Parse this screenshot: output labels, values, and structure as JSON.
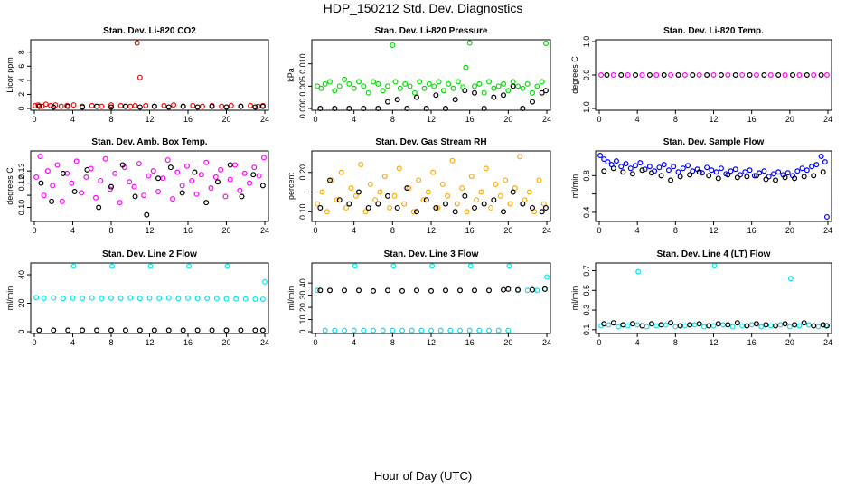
{
  "figure_title": "HDP_150212  Std. Dev. Diagnostics",
  "x_axis_label": "Hour of Day (UTC)",
  "chart_data": [
    {
      "type": "scatter",
      "title": "Stan. Dev. Li-820 CO2",
      "ylabel": "Licor ppm",
      "color": "#ff0000",
      "xlim": [
        0,
        24
      ],
      "ylim": [
        0,
        9.5
      ],
      "yticks": [
        0,
        2,
        4,
        6,
        8
      ],
      "ytick_labels": [
        "0",
        "2",
        "4",
        "6",
        "8"
      ],
      "xticks": [
        0,
        4,
        8,
        12,
        16,
        20,
        24
      ],
      "x": [
        0.1,
        0.4,
        0.8,
        1.2,
        1.7,
        2.2,
        2.8,
        3.4,
        4.1,
        5.0,
        6.0,
        7.0,
        8.0,
        9.0,
        10.0,
        10.5,
        10.7,
        11.0,
        11.6,
        12.5,
        13.5,
        14.5,
        15.5,
        16.5,
        17.5,
        18.5,
        19.5,
        20.5,
        21.5,
        22.5,
        23.3,
        23.8
      ],
      "y": [
        0.4,
        0.5,
        0.3,
        0.6,
        0.4,
        0.5,
        0.3,
        0.4,
        0.5,
        0.3,
        0.4,
        0.3,
        0.5,
        0.4,
        0.3,
        0.4,
        9.3,
        4.4,
        0.4,
        0.3,
        0.4,
        0.5,
        0.3,
        0.4,
        0.3,
        0.4,
        0.3,
        0.4,
        0.3,
        0.4,
        0.3,
        0.4
      ],
      "black_x": [
        0.5,
        2,
        3.5,
        5,
        6.5,
        8,
        9.5,
        11,
        12.5,
        14,
        15.5,
        17,
        18.5,
        20,
        21.5,
        23,
        23.8
      ],
      "black_y": [
        0.3,
        0.2,
        0.3,
        0.2,
        0.3,
        0.2,
        0.3,
        0.2,
        0.3,
        0.2,
        0.3,
        0.2,
        0.3,
        0.2,
        0.3,
        0.2,
        0.3
      ]
    },
    {
      "type": "scatter",
      "title": "Stan. Dev. Li-820 Pressure",
      "ylabel": "kPa",
      "color": "#00dd00",
      "xlim": [
        0,
        24
      ],
      "ylim": [
        0,
        0.015
      ],
      "yticks": [
        0,
        0.005,
        0.01
      ],
      "ytick_labels": [
        "0.000",
        "0.005",
        "0.010"
      ],
      "xticks": [
        0,
        4,
        8,
        12,
        16,
        20,
        24
      ],
      "x": [
        0.2,
        0.6,
        1.0,
        1.5,
        2.0,
        2.5,
        3.0,
        3.5,
        4.0,
        4.5,
        5.0,
        5.5,
        6.0,
        6.5,
        7.0,
        7.5,
        8.0,
        8.3,
        8.8,
        9.3,
        9.8,
        10.3,
        10.8,
        11.3,
        11.8,
        12.3,
        12.8,
        13.3,
        13.8,
        14.3,
        14.8,
        15.3,
        15.6,
        16.0,
        16.5,
        17.0,
        17.5,
        18.0,
        18.5,
        19.0,
        19.5,
        20.0,
        20.5,
        21.0,
        21.5,
        22.0,
        22.5,
        23.0,
        23.5,
        23.9
      ],
      "y": [
        0.005,
        0.0045,
        0.0055,
        0.006,
        0.004,
        0.005,
        0.0065,
        0.0055,
        0.0045,
        0.006,
        0.005,
        0.0035,
        0.006,
        0.0055,
        0.004,
        0.005,
        0.0142,
        0.006,
        0.0045,
        0.0055,
        0.005,
        0.0035,
        0.006,
        0.0045,
        0.0055,
        0.005,
        0.006,
        0.004,
        0.0055,
        0.0045,
        0.006,
        0.0048,
        0.0092,
        0.0147,
        0.005,
        0.0055,
        0.0035,
        0.006,
        0.0045,
        0.005,
        0.0055,
        0.004,
        0.006,
        0.005,
        0.0045,
        0.0055,
        0.0035,
        0.005,
        0.006,
        0.0146
      ],
      "black_x": [
        0.5,
        2,
        3.5,
        5,
        6.5,
        7.5,
        8.5,
        9.5,
        10.5,
        11.5,
        12.5,
        13.5,
        14.5,
        15.5,
        16.5,
        17.5,
        18.5,
        19.5,
        20.5,
        21.5,
        22.5,
        23.5,
        23.9
      ],
      "black_y": [
        0,
        0,
        0,
        0,
        0,
        0.0015,
        0.002,
        0,
        0.0025,
        0,
        0.003,
        0,
        0.002,
        0.004,
        0.0035,
        0,
        0.0025,
        0.003,
        0.005,
        0,
        0.0015,
        0.0035,
        0.004
      ]
    },
    {
      "type": "scatter",
      "title": "Stan. Dev. Li-820 Temp.",
      "ylabel": "degrees C",
      "color": "#ff00ff",
      "xlim": [
        0,
        24
      ],
      "ylim": [
        -1,
        1
      ],
      "yticks": [
        -1,
        0,
        1
      ],
      "ytick_labels": [
        "-1.0",
        "0.0",
        "1.0"
      ],
      "xticks": [
        0,
        4,
        8,
        12,
        16,
        20,
        24
      ],
      "x": [
        0.2,
        1.5,
        3,
        4.5,
        6,
        7.5,
        9,
        10.5,
        12,
        13.5,
        15,
        16.5,
        18,
        19.5,
        21,
        22.5,
        23.9
      ],
      "y": [
        0,
        0,
        0,
        0,
        0,
        0,
        0,
        0,
        0,
        0,
        0,
        0,
        0,
        0,
        0,
        0,
        0
      ],
      "black_x": [
        0.8,
        2.3,
        3.8,
        5.3,
        6.8,
        8.3,
        9.8,
        11.3,
        12.8,
        14.3,
        15.8,
        17.3,
        18.8,
        20.3,
        21.8,
        23.3
      ],
      "black_y": [
        0,
        0,
        0,
        0,
        0,
        0,
        0,
        0,
        0,
        0,
        0,
        0,
        0,
        0,
        0,
        0
      ]
    },
    {
      "type": "scatter",
      "title": "Stan. Dev. Amb. Box Temp.",
      "ylabel": "degrees C",
      "color": "#ff00ff",
      "xlim": [
        0,
        24
      ],
      "ylim": [
        0.09,
        0.145
      ],
      "yticks": [
        0.1,
        0.11,
        0.12,
        0.13
      ],
      "ytick_labels": [
        "0.10",
        "",
        "0.12",
        "0.13"
      ],
      "xticks": [
        0,
        4,
        8,
        12,
        16,
        20,
        24
      ],
      "x": [
        0.2,
        0.6,
        1.0,
        1.4,
        1.9,
        2.4,
        2.9,
        3.4,
        3.9,
        4.4,
        4.9,
        5.4,
        5.9,
        6.4,
        6.9,
        7.4,
        7.9,
        8.4,
        8.9,
        9.4,
        9.9,
        10.4,
        10.9,
        11.4,
        11.9,
        12.4,
        12.9,
        13.4,
        13.9,
        14.4,
        14.9,
        15.4,
        15.9,
        16.4,
        16.9,
        17.4,
        17.9,
        18.4,
        18.9,
        19.4,
        19.9,
        20.4,
        20.9,
        21.4,
        21.9,
        22.4,
        22.9,
        23.4,
        23.9
      ],
      "y": [
        0.125,
        0.142,
        0.11,
        0.13,
        0.118,
        0.135,
        0.105,
        0.128,
        0.12,
        0.138,
        0.112,
        0.125,
        0.132,
        0.108,
        0.122,
        0.14,
        0.115,
        0.128,
        0.104,
        0.133,
        0.121,
        0.117,
        0.136,
        0.11,
        0.126,
        0.13,
        0.113,
        0.124,
        0.139,
        0.107,
        0.129,
        0.118,
        0.134,
        0.122,
        0.111,
        0.127,
        0.137,
        0.116,
        0.125,
        0.131,
        0.109,
        0.123,
        0.135,
        0.114,
        0.128,
        0.12,
        0.133,
        0.126,
        0.141
      ],
      "black_x": [
        0.7,
        1.8,
        3.0,
        4.2,
        5.5,
        6.7,
        8.0,
        9.2,
        10.5,
        11.7,
        12.9,
        14.2,
        15.4,
        16.7,
        17.9,
        19.1,
        20.4,
        21.6,
        22.8,
        23.8
      ],
      "black_y": [
        0.12,
        0.105,
        0.128,
        0.113,
        0.131,
        0.1,
        0.117,
        0.135,
        0.109,
        0.094,
        0.124,
        0.133,
        0.112,
        0.129,
        0.104,
        0.121,
        0.135,
        0.109,
        0.127,
        0.118
      ]
    },
    {
      "type": "scatter",
      "title": "Stan. Dev. Gas Stream RH",
      "ylabel": "percent",
      "color": "#ffaa00",
      "xlim": [
        0,
        24
      ],
      "ylim": [
        0.08,
        0.25
      ],
      "yticks": [
        0.1,
        0.15,
        0.2
      ],
      "ytick_labels": [
        "0.10",
        "",
        "0.20"
      ],
      "xticks": [
        0,
        4,
        8,
        12,
        16,
        20,
        24
      ],
      "x": [
        0.2,
        0.7,
        1.2,
        1.7,
        2.2,
        2.7,
        3.2,
        3.7,
        4.2,
        4.7,
        5.2,
        5.7,
        6.2,
        6.7,
        7.2,
        7.7,
        8.2,
        8.7,
        9.2,
        9.7,
        10.2,
        10.7,
        11.2,
        11.7,
        12.2,
        12.7,
        13.2,
        13.7,
        14.2,
        14.7,
        15.2,
        15.7,
        16.2,
        16.7,
        17.2,
        17.7,
        18.2,
        18.7,
        19.2,
        19.7,
        20.2,
        20.7,
        21.2,
        21.7,
        22.2,
        22.7,
        23.2,
        23.7
      ],
      "y": [
        0.12,
        0.15,
        0.1,
        0.18,
        0.13,
        0.2,
        0.11,
        0.16,
        0.14,
        0.22,
        0.1,
        0.17,
        0.13,
        0.15,
        0.19,
        0.11,
        0.14,
        0.21,
        0.12,
        0.16,
        0.1,
        0.18,
        0.13,
        0.15,
        0.2,
        0.11,
        0.17,
        0.14,
        0.23,
        0.12,
        0.16,
        0.1,
        0.19,
        0.13,
        0.15,
        0.21,
        0.11,
        0.17,
        0.14,
        0.18,
        0.12,
        0.16,
        0.24,
        0.13,
        0.15,
        0.1,
        0.18,
        0.12
      ],
      "black_x": [
        0.5,
        1.5,
        2.5,
        3.5,
        4.5,
        5.5,
        6.5,
        7.5,
        8.5,
        9.5,
        10.5,
        11.5,
        12.5,
        13.5,
        14.5,
        15.5,
        16.5,
        17.5,
        18.5,
        19.5,
        20.5,
        21.5,
        22.5,
        23.5,
        23.9
      ],
      "black_y": [
        0.11,
        0.18,
        0.13,
        0.12,
        0.15,
        0.11,
        0.12,
        0.14,
        0.11,
        0.16,
        0.1,
        0.13,
        0.11,
        0.12,
        0.1,
        0.14,
        0.11,
        0.12,
        0.13,
        0.1,
        0.15,
        0.12,
        0.11,
        0.1,
        0.11
      ]
    },
    {
      "type": "scatter",
      "title": "Stan. Dev. Sample Flow",
      "ylabel": "ml/min",
      "color": "#0000ff",
      "xlim": [
        0,
        24
      ],
      "ylim": [
        0.32,
        1.05
      ],
      "yticks": [
        0.4,
        0.6,
        0.8
      ],
      "ytick_labels": [
        "0.4",
        "",
        "0.8"
      ],
      "xticks": [
        0,
        4,
        8,
        12,
        16,
        20,
        24
      ],
      "x": [
        0.1,
        0.5,
        0.9,
        1.3,
        1.8,
        2.3,
        2.8,
        3.3,
        3.8,
        4.3,
        4.8,
        5.3,
        5.8,
        6.3,
        6.8,
        7.3,
        7.8,
        8.3,
        8.8,
        9.3,
        9.8,
        10.3,
        10.8,
        11.3,
        11.8,
        12.3,
        12.8,
        13.3,
        13.8,
        14.3,
        14.8,
        15.3,
        15.8,
        16.3,
        16.8,
        17.3,
        17.8,
        18.3,
        18.8,
        19.3,
        19.8,
        20.3,
        20.8,
        21.3,
        21.8,
        22.3,
        22.8,
        23.3,
        23.7,
        23.9
      ],
      "y": [
        1.02,
        0.98,
        0.95,
        0.92,
        0.96,
        0.9,
        0.93,
        0.88,
        0.91,
        0.94,
        0.87,
        0.9,
        0.85,
        0.89,
        0.92,
        0.86,
        0.9,
        0.84,
        0.88,
        0.91,
        0.85,
        0.87,
        0.83,
        0.89,
        0.86,
        0.84,
        0.88,
        0.82,
        0.85,
        0.87,
        0.81,
        0.84,
        0.86,
        0.8,
        0.83,
        0.85,
        0.79,
        0.82,
        0.84,
        0.81,
        0.83,
        0.8,
        0.85,
        0.88,
        0.86,
        0.9,
        0.92,
        1.01,
        0.95,
        0.35
      ],
      "black_x": [
        0.5,
        1.5,
        2.5,
        3.5,
        4.5,
        5.5,
        6.5,
        7.5,
        8.5,
        9.5,
        10.5,
        11.5,
        12.5,
        13.5,
        14.5,
        15.5,
        16.5,
        17.5,
        18.5,
        19.5,
        20.5,
        21.5,
        22.5,
        23.5
      ],
      "black_y": [
        0.85,
        0.88,
        0.84,
        0.82,
        0.86,
        0.83,
        0.8,
        0.75,
        0.79,
        0.81,
        0.84,
        0.8,
        0.77,
        0.81,
        0.78,
        0.79,
        0.8,
        0.76,
        0.75,
        0.78,
        0.77,
        0.79,
        0.8,
        0.84
      ]
    },
    {
      "type": "scatter",
      "title": "Stan. Dev. Line 2 Flow",
      "ylabel": "ml/min",
      "color": "#00e5ee",
      "xlim": [
        0,
        24
      ],
      "ylim": [
        0,
        47
      ],
      "yticks": [
        0,
        20,
        40
      ],
      "ytick_labels": [
        "0",
        "20",
        "40"
      ],
      "xticks": [
        0,
        4,
        8,
        12,
        16,
        20,
        24
      ],
      "x": [
        0.2,
        1,
        2,
        3,
        4,
        4.1,
        5,
        6,
        7,
        8,
        8.1,
        9,
        10,
        11,
        12,
        12.1,
        13,
        14,
        15,
        16,
        16.1,
        17,
        18,
        19,
        20,
        20.1,
        21,
        22,
        23,
        23.8,
        24
      ],
      "y": [
        24,
        23.5,
        23.7,
        23.4,
        23.6,
        46,
        23.5,
        23.7,
        23.4,
        23.6,
        46,
        23.5,
        23.7,
        23.4,
        23.6,
        46,
        23.5,
        23.7,
        23.3,
        23.6,
        46,
        23.4,
        23.5,
        23.3,
        23.2,
        46,
        23.1,
        23,
        22.9,
        22.8,
        35
      ],
      "black_x": [
        0.5,
        2,
        3.5,
        5,
        6.5,
        8,
        9.5,
        11,
        12.5,
        14,
        15.5,
        17,
        18.5,
        20,
        21.5,
        23,
        23.8
      ],
      "black_y": [
        1,
        1,
        1,
        1,
        1,
        1,
        1,
        1,
        1,
        1,
        1,
        1,
        1,
        1,
        1,
        1,
        1
      ]
    },
    {
      "type": "scatter",
      "title": "Stan. Dev. Line 3 Flow",
      "ylabel": "ml/min",
      "color": "#00e5ee",
      "xlim": [
        0,
        24
      ],
      "ylim": [
        0,
        55
      ],
      "yticks": [
        0,
        10,
        20,
        30,
        40
      ],
      "ytick_labels": [
        "0",
        "10",
        "20",
        "30",
        "40"
      ],
      "xticks": [
        0,
        4,
        8,
        12,
        16,
        20,
        24
      ],
      "x": [
        0.2,
        1,
        2,
        3,
        4,
        4.1,
        5,
        6,
        7,
        8,
        8.1,
        9,
        10,
        11,
        12,
        12.1,
        13,
        14,
        15,
        16,
        16.1,
        17,
        18,
        19,
        20,
        20.1,
        21,
        22,
        23,
        23.8,
        24
      ],
      "y": [
        34,
        1,
        1,
        1,
        1,
        54,
        1,
        1,
        1,
        1,
        54,
        1,
        1,
        1,
        1,
        54,
        1,
        1,
        1,
        1,
        54,
        1,
        1,
        1,
        1,
        54,
        34,
        34,
        34,
        35,
        45
      ],
      "black_x": [
        0.5,
        1.5,
        3,
        4.5,
        6,
        7.5,
        9,
        10.5,
        12,
        13.5,
        15,
        16.5,
        18,
        19.5,
        20,
        21,
        22.5,
        23.8
      ],
      "black_y": [
        34,
        34,
        34,
        34,
        33.5,
        34,
        33.5,
        34,
        33.5,
        34,
        34,
        34,
        34,
        34.5,
        35,
        34.5,
        34.5,
        35
      ]
    },
    {
      "type": "scatter",
      "title": "Stan. Dev. Line 4 (LT) Flow",
      "ylabel": "ml/min",
      "color": "#00e5ee",
      "xlim": [
        0,
        24
      ],
      "ylim": [
        0.08,
        0.76
      ],
      "yticks": [
        0.1,
        0.3,
        0.5,
        0.7
      ],
      "ytick_labels": [
        "0.1",
        "0.3",
        "0.5",
        "0.7"
      ],
      "xticks": [
        0,
        4,
        8,
        12,
        16,
        20,
        24
      ],
      "x": [
        0.2,
        1,
        2,
        3,
        4,
        4.1,
        5,
        6,
        7,
        8,
        9,
        10,
        11,
        12,
        12.1,
        13,
        14,
        15,
        16,
        17,
        18,
        19,
        20,
        20.1,
        21,
        22,
        23,
        23.8
      ],
      "y": [
        0.14,
        0.15,
        0.13,
        0.14,
        0.15,
        0.69,
        0.13,
        0.14,
        0.15,
        0.13,
        0.14,
        0.15,
        0.13,
        0.14,
        0.75,
        0.15,
        0.13,
        0.14,
        0.15,
        0.13,
        0.14,
        0.15,
        0.13,
        0.62,
        0.14,
        0.15,
        0.13,
        0.14
      ],
      "black_x": [
        0.5,
        1.5,
        2.5,
        3.5,
        4.5,
        5.5,
        6.5,
        7.5,
        8.5,
        9.5,
        10.5,
        11.5,
        12.5,
        13.5,
        14.5,
        15.5,
        16.5,
        17.5,
        18.5,
        19.5,
        20.5,
        21.5,
        22.5,
        23.5,
        23.9
      ],
      "black_y": [
        0.16,
        0.17,
        0.15,
        0.16,
        0.14,
        0.16,
        0.15,
        0.17,
        0.14,
        0.15,
        0.16,
        0.14,
        0.16,
        0.15,
        0.17,
        0.14,
        0.16,
        0.15,
        0.14,
        0.16,
        0.15,
        0.17,
        0.14,
        0.15,
        0.14
      ]
    }
  ]
}
